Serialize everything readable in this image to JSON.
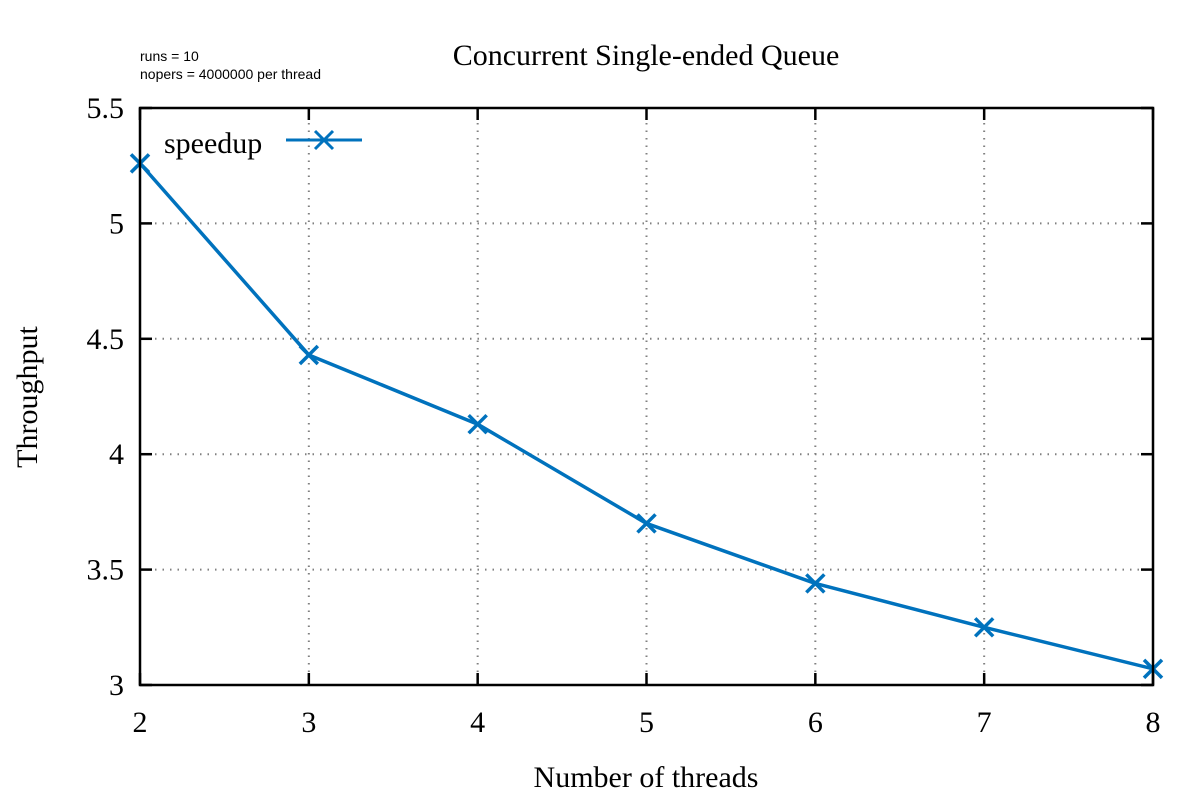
{
  "chart_data": {
    "type": "line",
    "title": "Concurrent Single-ended Queue",
    "annotations": [
      "runs = 10",
      "nopers = 4000000 per thread"
    ],
    "xlabel": "Number of threads",
    "ylabel": "Throughput",
    "x": [
      2,
      3,
      4,
      5,
      6,
      7,
      8
    ],
    "xlim": [
      2,
      8
    ],
    "ylim": [
      3,
      5.5
    ],
    "x_ticks": [
      "2",
      "3",
      "4",
      "5",
      "6",
      "7",
      "8"
    ],
    "y_ticks": [
      "3",
      "3.5",
      "4",
      "4.5",
      "5",
      "5.5"
    ],
    "grid": true,
    "legend_position": "top-left",
    "series": [
      {
        "name": "speedup",
        "color": "#0072bd",
        "marker": "x",
        "values": [
          5.26,
          4.43,
          4.13,
          3.7,
          3.44,
          3.25,
          3.07
        ]
      }
    ]
  }
}
